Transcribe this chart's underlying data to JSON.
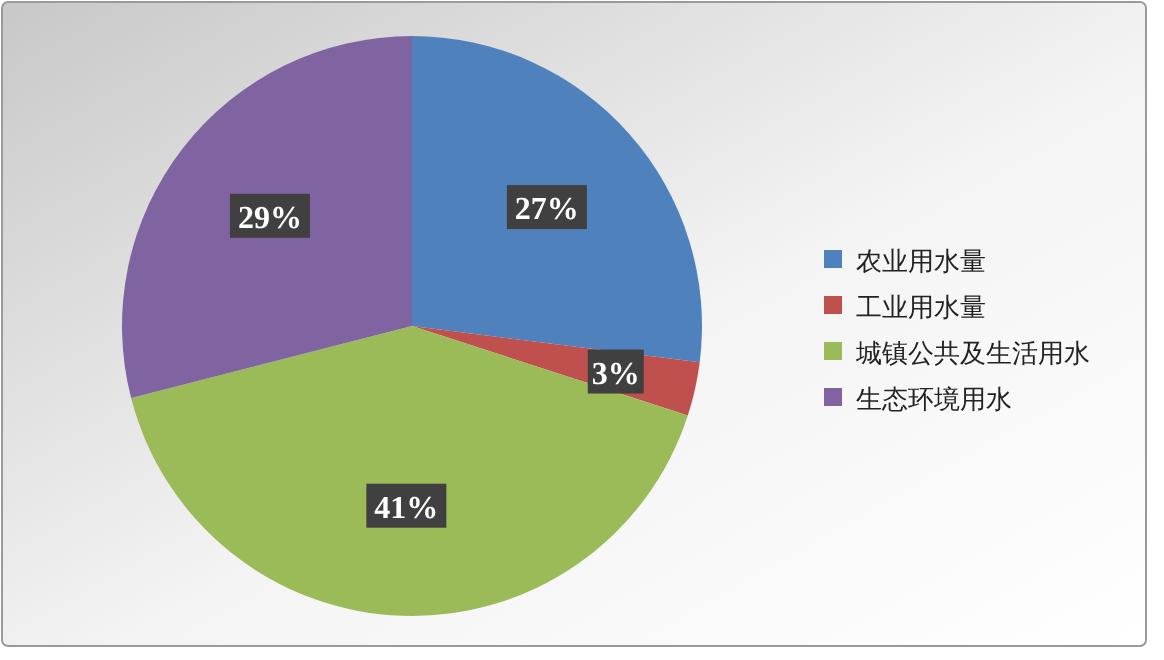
{
  "chart_data": {
    "type": "pie",
    "categories": [
      "农业用水量",
      "工业用水量",
      "城镇公共及生活用水",
      "生态环境用水"
    ],
    "values": [
      27,
      3,
      41,
      29
    ],
    "colors": [
      "#4f81bd",
      "#c0504d",
      "#9bbb59",
      "#8064a2"
    ],
    "value_labels": [
      "27%",
      "3%",
      "41%",
      "29%"
    ],
    "legend": "right"
  }
}
